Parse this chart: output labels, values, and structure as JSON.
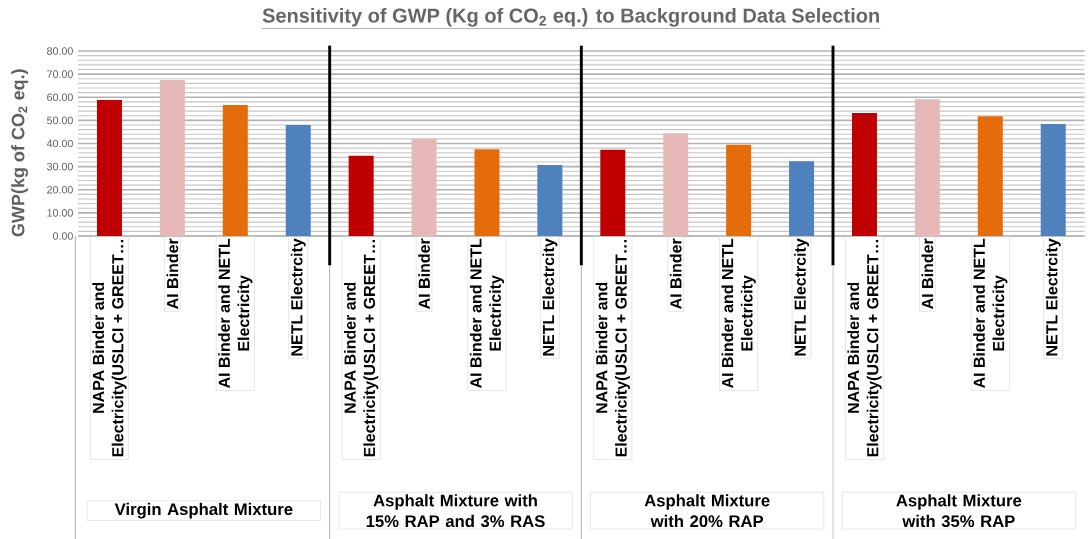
{
  "chart_data": {
    "type": "bar",
    "title": "Sensitivity of GWP (Kg of CO$_{2}$ eq.) to Background Data Selection",
    "ylabel": "GWP(kg of CO$_{2}$ eq.)",
    "categories": [
      "NAPA Binder and Electricity(USLCI + GREET…",
      "AI Binder",
      "AI Binder and NETL Electricity",
      "NETL Electrcity",
      "NAPA Binder and Electricity(USLCI + GREET…",
      "AI Binder",
      "AI Binder and NETL Electricity",
      "NETL Electrcity",
      "NAPA Binder and Electricity(USLCI + GREET…",
      "AI Binder",
      "AI Binder and NETL Electricity",
      "NETL Electrcity",
      "NAPA Binder and Electricity(USLCI + GREET…",
      "AI Binder",
      "AI Binder and NETL Electricity",
      "NETL Electrcity"
    ],
    "values": [
      58.8,
      67.5,
      56.6,
      48.0,
      34.7,
      41.9,
      37.5,
      30.7,
      37.3,
      44.4,
      39.5,
      32.3,
      53.2,
      59.1,
      51.8,
      48.4
    ],
    "colors": [
      "#c00000",
      "#e6b9b8",
      "#e46c0a",
      "#4f81bd",
      "#c00000",
      "#e6b9b8",
      "#e46c0a",
      "#4f81bd",
      "#c00000",
      "#e6b9b8",
      "#e46c0a",
      "#4f81bd",
      "#c00000",
      "#e6b9b8",
      "#e46c0a",
      "#4f81bd"
    ],
    "ylim": [
      0,
      80
    ],
    "yticks": [
      {
        "value": 0,
        "label": "0.00"
      },
      {
        "value": 10,
        "label": "10.00"
      },
      {
        "value": 20,
        "label": "20.00"
      },
      {
        "value": 30,
        "label": "30.00"
      },
      {
        "value": 40,
        "label": "40.00"
      },
      {
        "value": 50,
        "label": "50.00"
      },
      {
        "value": 60,
        "label": "60.00"
      },
      {
        "value": 70,
        "label": "70.00"
      },
      {
        "value": 80,
        "label": "80.00"
      }
    ],
    "grid": "y",
    "annotations": [
      "Virgin Asphalt Mixture",
      "Asphalt Mixture with 15% RAP and 3% RAS",
      "Asphalt Mixture with 20% RAP",
      "Asphalt Mixture with 35% RAP"
    ]
  }
}
